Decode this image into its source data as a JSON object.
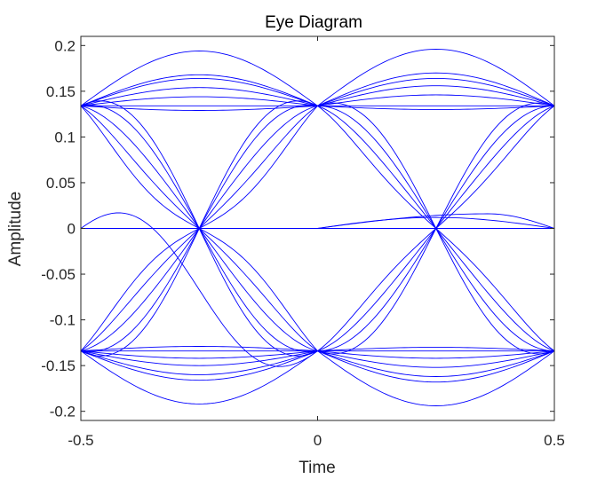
{
  "chart_data": {
    "type": "line",
    "title": "Eye Diagram",
    "xlabel": "Time",
    "ylabel": "Amplitude",
    "xlim": [
      -0.5,
      0.5
    ],
    "ylim": [
      -0.21,
      0.21
    ],
    "xticks": [
      -0.5,
      0,
      0.5
    ],
    "xtick_labels": [
      "-0.5",
      "0",
      "0.5"
    ],
    "yticks": [
      -0.2,
      -0.15,
      -0.1,
      -0.05,
      0,
      0.05,
      0.1,
      0.15,
      0.2
    ],
    "ytick_labels": [
      "-0.2",
      "-0.15",
      "-0.1",
      "-0.05",
      "0",
      "0.05",
      "0.1",
      "0.15",
      "0.2"
    ],
    "grid": false,
    "legend": "none",
    "line_color": "#0000ff",
    "symbol_levels": [
      -0.134,
      0.134
    ],
    "traces_first_half": [
      {
        "y0": 0.134,
        "y1": 0.134,
        "d": 0.06
      },
      {
        "y0": 0.134,
        "y1": 0.134,
        "d": 0.034
      },
      {
        "y0": 0.134,
        "y1": 0.134,
        "d": 0.03
      },
      {
        "y0": 0.134,
        "y1": 0.134,
        "d": 0.02
      },
      {
        "y0": 0.134,
        "y1": 0.134,
        "d": 0.01
      },
      {
        "y0": 0.134,
        "y1": 0.134,
        "d": -0.005
      },
      {
        "y0": 0.134,
        "y1": 0.134,
        "d": 0.0
      },
      {
        "y0": -0.134,
        "y1": -0.134,
        "d": -0.058
      },
      {
        "y0": -0.134,
        "y1": -0.134,
        "d": -0.032
      },
      {
        "y0": -0.134,
        "y1": -0.134,
        "d": -0.026
      },
      {
        "y0": -0.134,
        "y1": -0.134,
        "d": -0.016
      },
      {
        "y0": -0.134,
        "y1": -0.134,
        "d": -0.008
      },
      {
        "y0": -0.134,
        "y1": -0.134,
        "d": 0.005
      },
      {
        "y0": -0.134,
        "y1": -0.134,
        "d": 0.0
      },
      {
        "y0": 0.134,
        "y1": -0.134,
        "d": 0.0,
        "s": 0.02
      },
      {
        "y0": 0.134,
        "y1": -0.134,
        "d": 0.0,
        "s": 0.008
      },
      {
        "y0": 0.134,
        "y1": -0.134,
        "d": 0.0,
        "s": -0.01
      },
      {
        "y0": 0.134,
        "y1": -0.134,
        "d": 0.0,
        "s": -0.028
      },
      {
        "y0": 0.134,
        "y1": -0.134,
        "d": 0.0,
        "s": -0.045
      },
      {
        "y0": -0.134,
        "y1": 0.134,
        "d": 0.0,
        "s": -0.02
      },
      {
        "y0": -0.134,
        "y1": 0.134,
        "d": 0.0,
        "s": -0.008
      },
      {
        "y0": -0.134,
        "y1": 0.134,
        "d": 0.0,
        "s": 0.01
      },
      {
        "y0": -0.134,
        "y1": 0.134,
        "d": 0.0,
        "s": 0.028
      },
      {
        "y0": -0.134,
        "y1": 0.134,
        "d": 0.0,
        "s": 0.045
      },
      {
        "y0": 0.0,
        "y1": 0.0,
        "d": 0.0
      },
      {
        "y0": 0.0,
        "y1": -0.134,
        "d": 0.0,
        "s": 0.03
      }
    ],
    "traces_second_half": [
      {
        "y0": 0.134,
        "y1": 0.134,
        "d": 0.062
      },
      {
        "y0": 0.134,
        "y1": 0.134,
        "d": 0.036
      },
      {
        "y0": 0.134,
        "y1": 0.134,
        "d": 0.03
      },
      {
        "y0": 0.134,
        "y1": 0.134,
        "d": 0.022
      },
      {
        "y0": 0.134,
        "y1": 0.134,
        "d": 0.012
      },
      {
        "y0": 0.134,
        "y1": 0.134,
        "d": -0.004
      },
      {
        "y0": 0.134,
        "y1": 0.134,
        "d": 0.0
      },
      {
        "y0": -0.134,
        "y1": -0.134,
        "d": -0.06
      },
      {
        "y0": -0.134,
        "y1": -0.134,
        "d": -0.034
      },
      {
        "y0": -0.134,
        "y1": -0.134,
        "d": -0.028
      },
      {
        "y0": -0.134,
        "y1": -0.134,
        "d": -0.018
      },
      {
        "y0": -0.134,
        "y1": -0.134,
        "d": -0.008
      },
      {
        "y0": -0.134,
        "y1": -0.134,
        "d": 0.004
      },
      {
        "y0": -0.134,
        "y1": -0.134,
        "d": 0.0
      },
      {
        "y0": 0.134,
        "y1": -0.134,
        "d": 0.0,
        "s": 0.015
      },
      {
        "y0": 0.134,
        "y1": -0.134,
        "d": 0.0,
        "s": 0.0
      },
      {
        "y0": 0.134,
        "y1": -0.134,
        "d": 0.0,
        "s": -0.015
      },
      {
        "y0": 0.134,
        "y1": -0.134,
        "d": 0.0,
        "s": -0.03
      },
      {
        "y0": -0.134,
        "y1": 0.134,
        "d": 0.0,
        "s": -0.015
      },
      {
        "y0": -0.134,
        "y1": 0.134,
        "d": 0.0,
        "s": 0.0
      },
      {
        "y0": -0.134,
        "y1": 0.134,
        "d": 0.0,
        "s": 0.015
      },
      {
        "y0": -0.134,
        "y1": 0.134,
        "d": 0.0,
        "s": 0.03
      },
      {
        "y0": 0.0,
        "y1": 0.0,
        "d": 0.0
      },
      {
        "y0": 0.0,
        "y1": 0.0,
        "d": 0.012
      },
      {
        "y0": 0.0,
        "y1": 0.0,
        "d": 0.016,
        "peak": 0.72
      }
    ]
  }
}
